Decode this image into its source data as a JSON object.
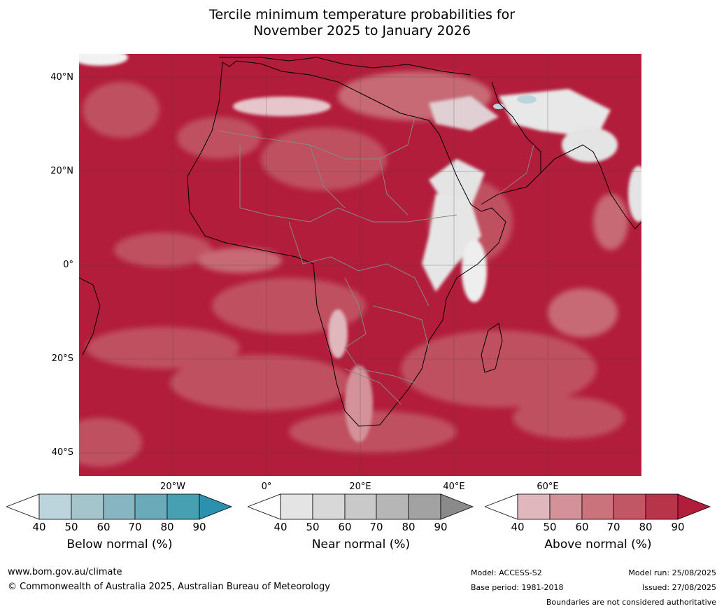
{
  "title": {
    "line1": "Tercile minimum temperature probabilities for",
    "line2": "November 2025 to January 2026"
  },
  "lat_labels": [
    "40°N",
    "20°N",
    "0°",
    "20°S",
    "40°S"
  ],
  "lon_labels": [
    "20°W",
    "0°",
    "20°E",
    "40°E",
    "60°E"
  ],
  "colorbars": [
    {
      "name": "Below normal (%)",
      "ticks": [
        "40",
        "50",
        "60",
        "70",
        "80",
        "90"
      ],
      "colors": [
        "#ffffff",
        "#bcd4dc",
        "#a5c5cd",
        "#87b5c1",
        "#6aaab9",
        "#46a0b2",
        "#2b91ae"
      ]
    },
    {
      "name": "Near normal (%)",
      "ticks": [
        "40",
        "50",
        "60",
        "70",
        "80",
        "90"
      ],
      "colors": [
        "#ffffff",
        "#e4e4e4",
        "#d8d8d8",
        "#c9c9c9",
        "#b6b6b6",
        "#a2a2a2",
        "#8a8a8a"
      ]
    },
    {
      "name": "Above normal (%)",
      "ticks": [
        "40",
        "50",
        "60",
        "70",
        "80",
        "90"
      ],
      "colors": [
        "#ffffff",
        "#e0b7bd",
        "#d49199",
        "#ca737d",
        "#c15665",
        "#b83449",
        "#b21d3b"
      ]
    }
  ],
  "footer": {
    "url": "www.bom.gov.au/climate",
    "copyright": "© Commonwealth of Australia 2025, Australian Bureau of Meteorology",
    "model": "Model: ACCESS-S2",
    "base_period": "Base period: 1981-2018",
    "model_run": "Model run: 25/08/2025",
    "issued": "Issued: 27/08/2025",
    "disclaimer": "Boundaries are not considered authoritative"
  }
}
